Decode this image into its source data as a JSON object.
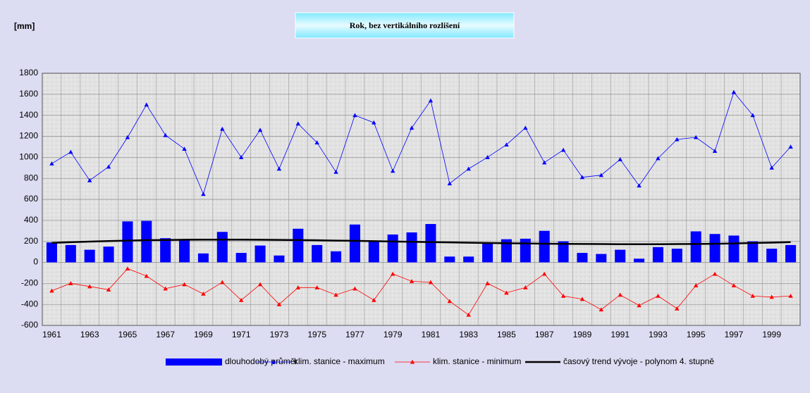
{
  "chart_data": {
    "type": "bar",
    "title": "Rok, bez vertikálního rozlišení",
    "y_label": "[mm]",
    "categories": [
      "1961",
      null,
      "1963",
      null,
      "1965",
      null,
      "1967",
      null,
      "1969",
      null,
      "1971",
      null,
      "1973",
      null,
      "1975",
      null,
      "1977",
      null,
      "1979",
      null,
      "1981",
      null,
      "1983",
      null,
      "1985",
      null,
      "1987",
      null,
      "1989",
      null,
      "1991",
      null,
      "1993",
      null,
      "1995",
      null,
      "1997",
      null,
      "1999",
      null
    ],
    "ylim": [
      -600,
      1800
    ],
    "yticks": [
      -600,
      -400,
      -200,
      0,
      200,
      400,
      600,
      800,
      1000,
      1200,
      1400,
      1600,
      1800
    ],
    "grid": true,
    "legend": "bottom",
    "series": [
      {
        "name": "dlouhodobý průměr",
        "type": "bar",
        "color": "#0000ff",
        "values": [
          190,
          165,
          120,
          150,
          390,
          395,
          230,
          220,
          85,
          290,
          90,
          160,
          65,
          320,
          165,
          105,
          360,
          205,
          265,
          285,
          365,
          55,
          55,
          180,
          220,
          225,
          300,
          200,
          90,
          80,
          120,
          35,
          145,
          130,
          295,
          270,
          255,
          200,
          130,
          165
        ]
      },
      {
        "name": "klim. stanice - maximum",
        "type": "line",
        "marker": "triangle",
        "color": "#0000ff",
        "values": [
          940,
          1050,
          780,
          910,
          1190,
          1500,
          1210,
          1080,
          650,
          1270,
          1000,
          1260,
          890,
          1320,
          1140,
          860,
          1400,
          1330,
          870,
          1280,
          1540,
          750,
          890,
          1000,
          1120,
          1280,
          950,
          1070,
          810,
          830,
          980,
          730,
          990,
          1170,
          1190,
          1060,
          1620,
          1400,
          900,
          1100
        ]
      },
      {
        "name": "klim. stanice - minimum",
        "type": "line",
        "marker": "triangle",
        "color": "#ff0000",
        "values": [
          -270,
          -200,
          -230,
          -260,
          -60,
          -130,
          -250,
          -210,
          -300,
          -190,
          -360,
          -210,
          -400,
          -240,
          -240,
          -310,
          -250,
          -360,
          -110,
          -180,
          -190,
          -370,
          -500,
          -200,
          -290,
          -240,
          -110,
          -320,
          -350,
          -450,
          -310,
          -410,
          -320,
          -440,
          -220,
          -110,
          -220,
          -320,
          -330,
          -320
        ]
      },
      {
        "name": "časový trend vývoje - polynom 4. stupně",
        "type": "line",
        "marker": "none",
        "color": "#000000",
        "values": [
          185,
          192,
          198,
          203,
          207,
          211,
          213,
          215,
          216,
          216,
          216,
          215,
          214,
          212,
          210,
          207,
          205,
          202,
          199,
          196,
          193,
          190,
          187,
          184,
          182,
          180,
          178,
          176,
          175,
          174,
          173,
          173,
          173,
          174,
          175,
          177,
          180,
          184,
          188,
          193
        ]
      }
    ]
  }
}
